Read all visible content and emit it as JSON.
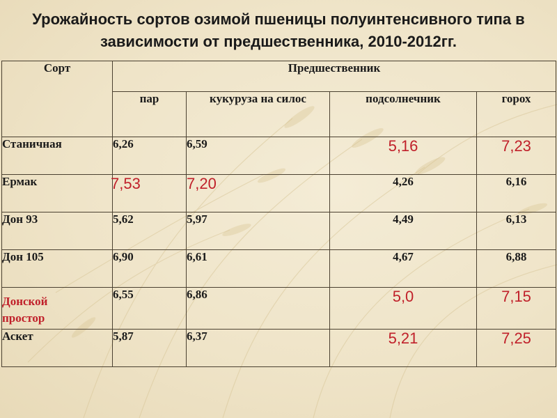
{
  "slide": {
    "title_line1": "Урожайность сортов озимой пшеницы полуинтенсивного типа  в",
    "title_line2": "зависимости от предшественника, 2010-2012гг."
  },
  "table": {
    "header_sort": "Сорт",
    "header_group": "Предшественник",
    "subheaders": [
      "пар",
      "кукуруза на силос",
      "подсолнечник",
      "горох"
    ],
    "rows": [
      {
        "name": "Станичная",
        "values": [
          "6,26",
          "6,59",
          "5,16",
          "7,23"
        ],
        "highlight": [
          false,
          false,
          true,
          true
        ]
      },
      {
        "name": "Ермак",
        "values": [
          "7,53",
          "7,20",
          "4,26",
          "6,16"
        ],
        "highlight": [
          true,
          true,
          false,
          false
        ]
      },
      {
        "name": "Дон 93",
        "values": [
          "5,62",
          "5,97",
          "4,49",
          "6,13"
        ],
        "highlight": [
          false,
          false,
          false,
          false
        ]
      },
      {
        "name": "Дон 105",
        "values": [
          "6,90",
          "6,61",
          "4,67",
          "6,88"
        ],
        "highlight": [
          false,
          false,
          false,
          false
        ]
      },
      {
        "name": "Донской простор",
        "name_line1": "Донской",
        "name_line2": "простор",
        "values": [
          "6,55",
          "6,86",
          "5,0",
          "7,15"
        ],
        "highlight": [
          false,
          false,
          true,
          true
        ],
        "name_highlight": true
      },
      {
        "name": "Аскет",
        "values": [
          "5,87",
          "6,37",
          "5,21",
          "7,25"
        ],
        "highlight": [
          false,
          false,
          true,
          true
        ]
      }
    ]
  },
  "colors": {
    "highlight": "#c0202a",
    "text": "#1a1a1a",
    "background": "#f0e6cc"
  }
}
